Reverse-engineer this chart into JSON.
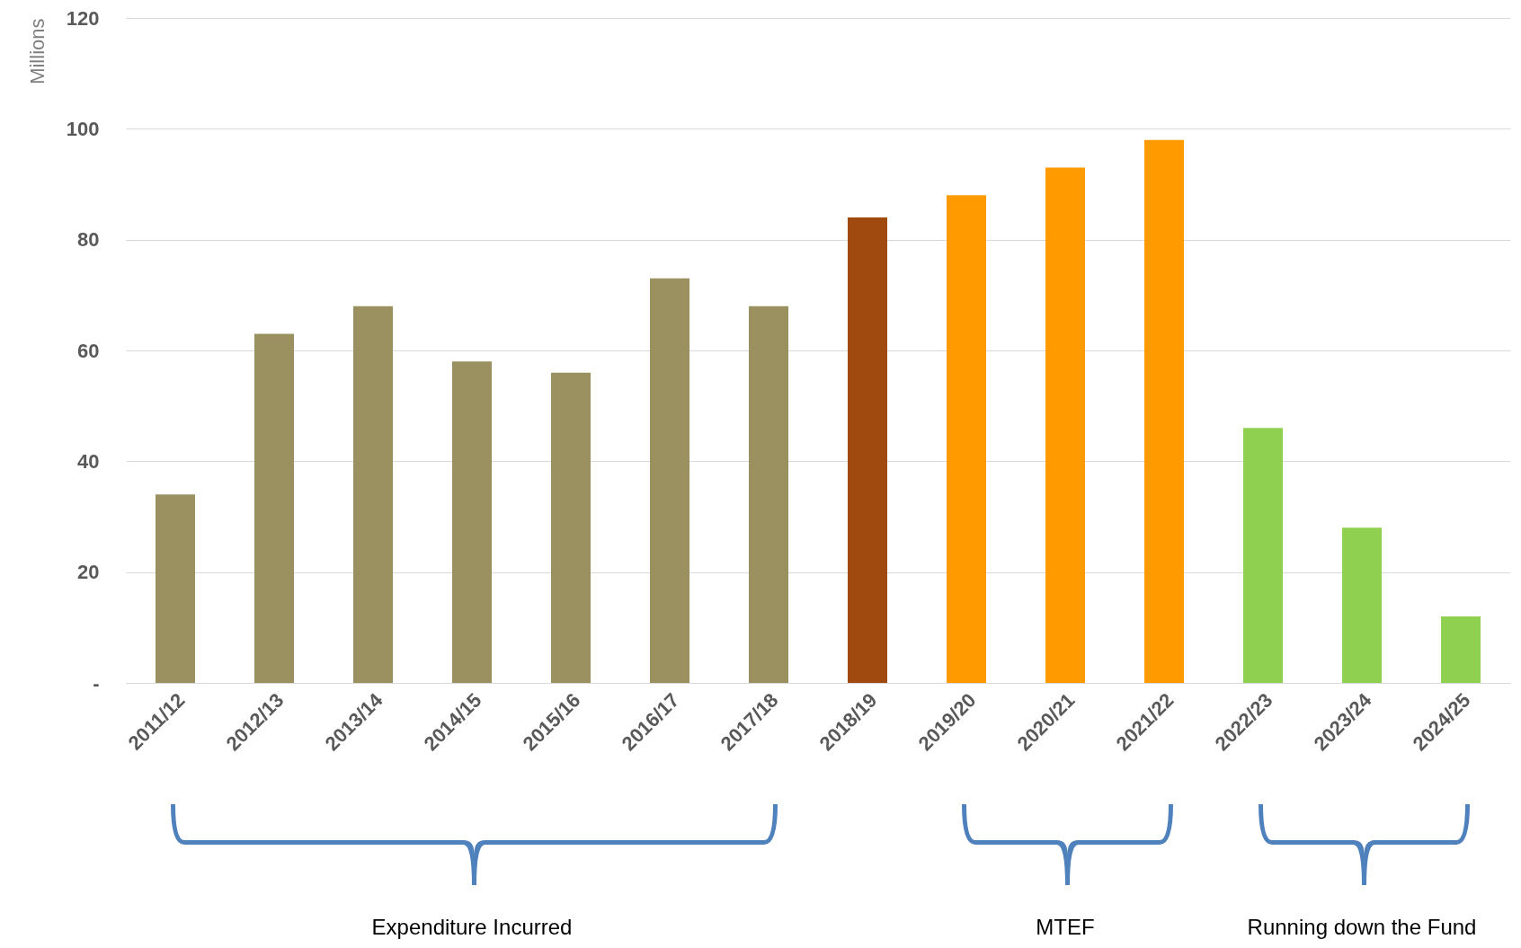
{
  "chart_data": {
    "type": "bar",
    "ylabel": "Millions",
    "categories": [
      "2011/12",
      "2012/13",
      "2013/14",
      "2014/15",
      "2015/16",
      "2016/17",
      "2017/18",
      "2018/19",
      "2019/20",
      "2020/21",
      "2021/22",
      "2022/23",
      "2023/24",
      "2024/25"
    ],
    "values": [
      34,
      63,
      68,
      58,
      56,
      73,
      68,
      84,
      88,
      93,
      98,
      46,
      28,
      12
    ],
    "colors": [
      "#9a9060",
      "#9a9060",
      "#9a9060",
      "#9a9060",
      "#9a9060",
      "#9a9060",
      "#9a9060",
      "#a04a10",
      "#ff9a00",
      "#ff9a00",
      "#ff9a00",
      "#90d050",
      "#90d050",
      "#90d050"
    ],
    "ylim": [
      0,
      120
    ],
    "yticks": [
      {
        "value": 0,
        "label": "-"
      },
      20,
      40,
      60,
      80,
      100,
      120
    ],
    "grid": "y",
    "legend": false,
    "annotations": [
      "Expenditure Incurred",
      "MTEF",
      "Running down the Fund"
    ]
  }
}
